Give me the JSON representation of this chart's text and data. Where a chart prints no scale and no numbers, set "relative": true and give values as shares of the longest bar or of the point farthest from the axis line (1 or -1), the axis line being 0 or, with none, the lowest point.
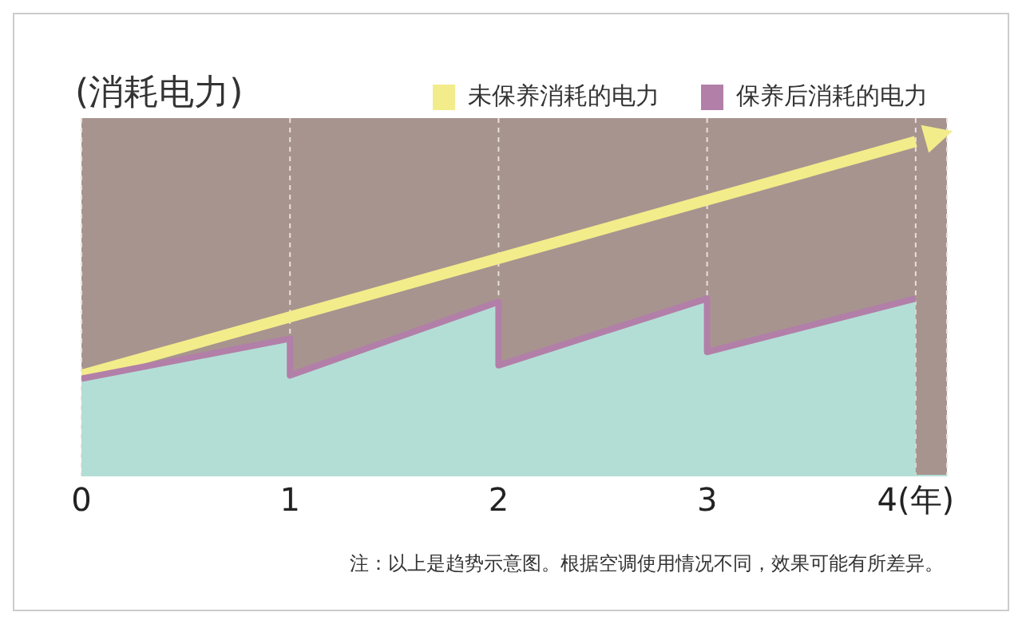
{
  "chart_data": {
    "type": "line",
    "ylabel": "(消耗电力)",
    "relative": true,
    "xlim": [
      0,
      4.15
    ],
    "xticks": [
      0,
      1,
      2,
      3,
      {
        "value": 4,
        "label": "4(年)"
      }
    ],
    "series": [
      {
        "name": "未保养消耗的电力",
        "color": "#f3ec8a",
        "x": [
          0,
          4
        ],
        "values": [
          0.3,
          1.0
        ]
      },
      {
        "type": "area",
        "color": "#b3ded6",
        "x": [
          0,
          1,
          1,
          2,
          2,
          3,
          3,
          4
        ],
        "values": [
          0.29,
          0.41,
          0.3,
          0.52,
          0.33,
          0.53,
          0.37,
          0.53
        ]
      },
      {
        "name": "保养后消耗的电力",
        "color": "#b27fa8",
        "x": [
          0,
          1,
          1,
          2,
          2,
          3,
          3,
          4
        ],
        "values": [
          0.29,
          0.41,
          0.3,
          0.52,
          0.33,
          0.53,
          0.37,
          0.53
        ]
      }
    ],
    "grid": "x",
    "legend": "top right",
    "marker": "none",
    "annotations": [
      "注：以上是趋势示意图。根据空调使用情况不同，效果可能有所差异。"
    ]
  }
}
